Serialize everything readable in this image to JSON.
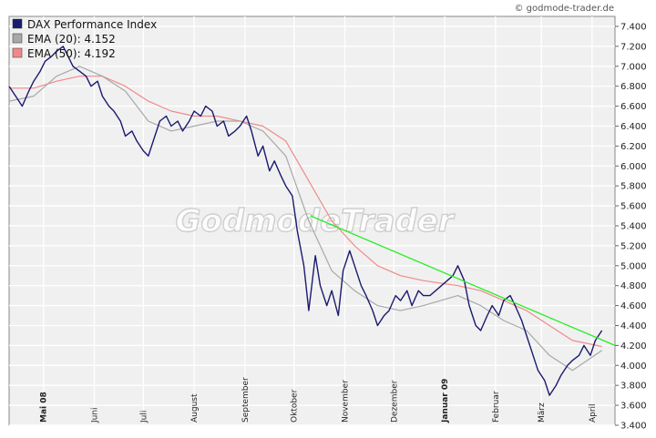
{
  "credit": "© godmode-trader.de",
  "watermark": "GodmodeTrader",
  "chart_data": {
    "type": "line",
    "title": "",
    "xlabel": "",
    "ylabel": "",
    "ylim": [
      3400,
      7500
    ],
    "y_ticks": [
      "7.400",
      "7.200",
      "7.000",
      "6.800",
      "6.600",
      "6.400",
      "6.200",
      "6.000",
      "5.800",
      "5.600",
      "5.400",
      "5.200",
      "5.000",
      "4.800",
      "4.600",
      "4.400",
      "4.200",
      "4.000",
      "3.800",
      "3.600",
      "3.400"
    ],
    "y_tick_values": [
      7400,
      7200,
      7000,
      6800,
      6600,
      6400,
      6200,
      6000,
      5800,
      5600,
      5400,
      5200,
      5000,
      4800,
      4600,
      4400,
      4200,
      4000,
      3800,
      3600,
      3400
    ],
    "x_ticks": [
      {
        "label": "Mai 08",
        "date": "2008-05-01",
        "major": true
      },
      {
        "label": "Juni",
        "date": "2008-06-01",
        "major": false
      },
      {
        "label": "Juli",
        "date": "2008-07-01",
        "major": false
      },
      {
        "label": "August",
        "date": "2008-08-01",
        "major": false
      },
      {
        "label": "September",
        "date": "2008-09-01",
        "major": false
      },
      {
        "label": "Oktober",
        "date": "2008-10-01",
        "major": false
      },
      {
        "label": "November",
        "date": "2008-11-01",
        "major": false
      },
      {
        "label": "Dezember",
        "date": "2008-12-01",
        "major": false
      },
      {
        "label": "Januar 09",
        "date": "2009-01-01",
        "major": true
      },
      {
        "label": "Februar",
        "date": "2009-02-01",
        "major": false
      },
      {
        "label": "März",
        "date": "2009-03-01",
        "major": false
      },
      {
        "label": "April",
        "date": "2009-04-01",
        "major": false
      }
    ],
    "x_range": [
      "2008-04-10",
      "2009-04-15"
    ],
    "grid": true,
    "legend_position": "top-left",
    "series": [
      {
        "name": "DAX Performance Index",
        "legend_label": "DAX Performance Index",
        "color": "#1a1a6e",
        "x": [
          "2008-04-10",
          "2008-04-14",
          "2008-04-18",
          "2008-04-22",
          "2008-04-25",
          "2008-04-29",
          "2008-05-02",
          "2008-05-06",
          "2008-05-09",
          "2008-05-13",
          "2008-05-16",
          "2008-05-19",
          "2008-05-23",
          "2008-05-27",
          "2008-05-30",
          "2008-06-03",
          "2008-06-06",
          "2008-06-10",
          "2008-06-13",
          "2008-06-17",
          "2008-06-20",
          "2008-06-24",
          "2008-06-27",
          "2008-07-01",
          "2008-07-04",
          "2008-07-08",
          "2008-07-11",
          "2008-07-15",
          "2008-07-18",
          "2008-07-22",
          "2008-07-25",
          "2008-07-29",
          "2008-08-01",
          "2008-08-05",
          "2008-08-08",
          "2008-08-12",
          "2008-08-15",
          "2008-08-19",
          "2008-08-22",
          "2008-08-26",
          "2008-08-29",
          "2008-09-02",
          "2008-09-05",
          "2008-09-09",
          "2008-09-12",
          "2008-09-16",
          "2008-09-19",
          "2008-09-23",
          "2008-09-26",
          "2008-09-30",
          "2008-10-03",
          "2008-10-07",
          "2008-10-10",
          "2008-10-14",
          "2008-10-17",
          "2008-10-21",
          "2008-10-24",
          "2008-10-28",
          "2008-10-31",
          "2008-11-04",
          "2008-11-07",
          "2008-11-11",
          "2008-11-14",
          "2008-11-18",
          "2008-11-21",
          "2008-11-25",
          "2008-11-28",
          "2008-12-02",
          "2008-12-05",
          "2008-12-09",
          "2008-12-12",
          "2008-12-16",
          "2008-12-19",
          "2008-12-23",
          "2008-12-30",
          "2009-01-06",
          "2009-01-09",
          "2009-01-13",
          "2009-01-16",
          "2009-01-20",
          "2009-01-23",
          "2009-01-27",
          "2009-01-30",
          "2009-02-03",
          "2009-02-06",
          "2009-02-10",
          "2009-02-13",
          "2009-02-17",
          "2009-02-20",
          "2009-02-24",
          "2009-02-27",
          "2009-03-03",
          "2009-03-06",
          "2009-03-10",
          "2009-03-13",
          "2009-03-17",
          "2009-03-20",
          "2009-03-24",
          "2009-03-27",
          "2009-03-31",
          "2009-04-03",
          "2009-04-07"
        ],
        "values": [
          6800,
          6700,
          6600,
          6750,
          6850,
          6950,
          7050,
          7100,
          7150,
          7200,
          7100,
          7000,
          6950,
          6900,
          6800,
          6850,
          6700,
          6600,
          6550,
          6450,
          6300,
          6350,
          6250,
          6150,
          6100,
          6300,
          6450,
          6500,
          6400,
          6450,
          6350,
          6450,
          6550,
          6500,
          6600,
          6550,
          6400,
          6450,
          6300,
          6350,
          6400,
          6500,
          6350,
          6100,
          6200,
          5950,
          6050,
          5900,
          5800,
          5700,
          5350,
          5000,
          4550,
          5100,
          4800,
          4600,
          4750,
          4500,
          4950,
          5150,
          5000,
          4800,
          4700,
          4550,
          4400,
          4500,
          4550,
          4700,
          4650,
          4750,
          4600,
          4750,
          4700,
          4700,
          4800,
          4900,
          5000,
          4850,
          4600,
          4400,
          4350,
          4500,
          4600,
          4500,
          4650,
          4700,
          4600,
          4450,
          4300,
          4100,
          3950,
          3850,
          3700,
          3800,
          3900,
          4000,
          4050,
          4100,
          4200,
          4100,
          4250,
          4350
        ]
      },
      {
        "name": "EMA (20)",
        "legend_label": "EMA (20): 4.152",
        "color": "#a8a8a8",
        "x": [
          "2008-04-10",
          "2008-04-25",
          "2008-05-09",
          "2008-05-23",
          "2008-06-06",
          "2008-06-20",
          "2008-07-04",
          "2008-07-18",
          "2008-08-01",
          "2008-08-15",
          "2008-08-29",
          "2008-09-12",
          "2008-09-26",
          "2008-10-10",
          "2008-10-24",
          "2008-11-07",
          "2008-11-21",
          "2008-12-05",
          "2008-12-19",
          "2009-01-09",
          "2009-01-23",
          "2009-02-06",
          "2009-02-20",
          "2009-03-06",
          "2009-03-20",
          "2009-04-07"
        ],
        "values": [
          6650,
          6700,
          6900,
          7000,
          6900,
          6750,
          6450,
          6350,
          6400,
          6450,
          6450,
          6350,
          6100,
          5450,
          4950,
          4750,
          4600,
          4550,
          4600,
          4700,
          4600,
          4450,
          4350,
          4100,
          3950,
          4150
        ]
      },
      {
        "name": "EMA (50)",
        "legend_label": "EMA (50): 4.192",
        "color": "#f08a8a",
        "x": [
          "2008-04-10",
          "2008-04-25",
          "2008-05-09",
          "2008-05-23",
          "2008-06-06",
          "2008-06-20",
          "2008-07-04",
          "2008-07-18",
          "2008-08-01",
          "2008-08-15",
          "2008-08-29",
          "2008-09-12",
          "2008-09-26",
          "2008-10-10",
          "2008-10-24",
          "2008-11-07",
          "2008-11-21",
          "2008-12-05",
          "2008-12-19",
          "2009-01-09",
          "2009-01-23",
          "2009-02-06",
          "2009-02-20",
          "2009-03-06",
          "2009-03-20",
          "2009-04-07"
        ],
        "values": [
          6780,
          6780,
          6850,
          6900,
          6900,
          6800,
          6650,
          6550,
          6500,
          6500,
          6450,
          6400,
          6250,
          5850,
          5450,
          5200,
          5000,
          4900,
          4850,
          4800,
          4750,
          4650,
          4550,
          4400,
          4250,
          4190
        ]
      }
    ],
    "trendline": {
      "color": "#22ee22",
      "x": [
        "2008-10-11",
        "2009-04-15"
      ],
      "values": [
        5500,
        4200
      ]
    }
  }
}
